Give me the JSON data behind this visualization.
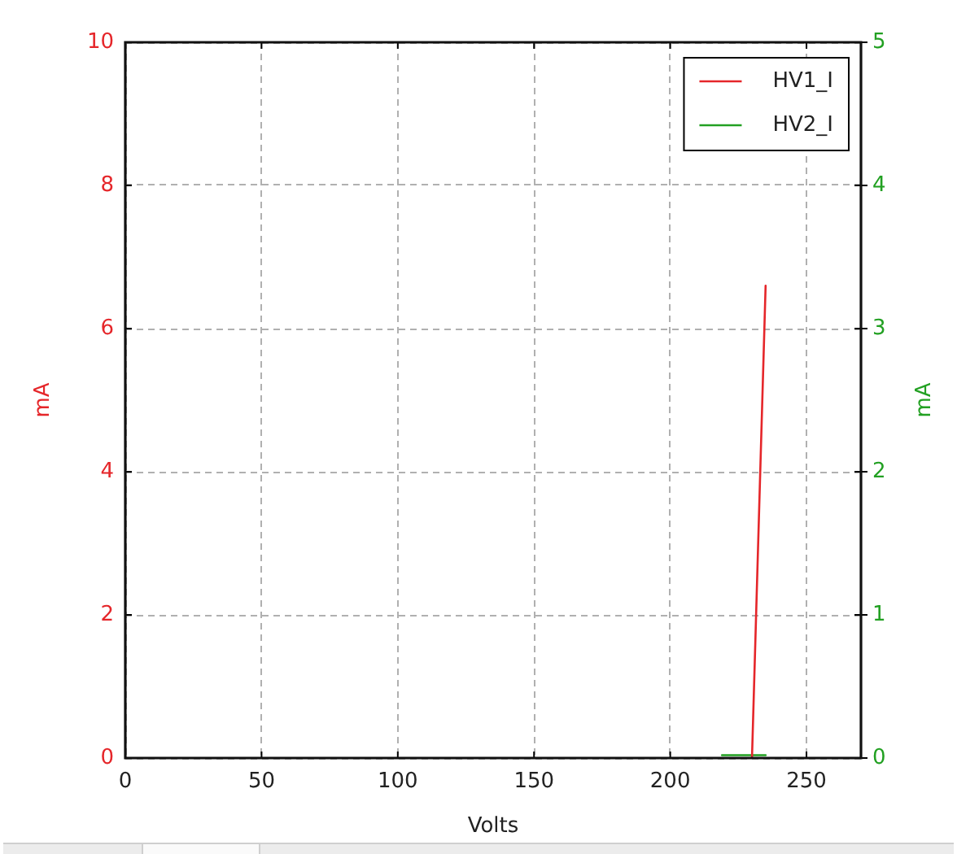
{
  "chart_data": {
    "type": "line",
    "xlabel": "Volts",
    "ylabel": "mA",
    "y2label": "mA",
    "xlim": [
      0,
      270
    ],
    "xticks": [
      0,
      50,
      100,
      150,
      200,
      250
    ],
    "ylim": [
      0,
      10
    ],
    "yticks": [
      0,
      2,
      4,
      6,
      8,
      10
    ],
    "y2lim": [
      0,
      5
    ],
    "y2ticks": [
      0,
      1,
      2,
      3,
      4,
      5
    ],
    "grid": true,
    "legend": "top right",
    "line_style": "solid",
    "series": [
      {
        "name": "HV1_I",
        "color": "#e5262a",
        "x": [
          230,
          235
        ],
        "values": [
          0,
          6.6
        ]
      },
      {
        "name": "HV2_I",
        "color": "#22a022",
        "axis": "y2",
        "x": [
          219,
          235
        ],
        "values": [
          0.02,
          0.02
        ]
      }
    ]
  }
}
